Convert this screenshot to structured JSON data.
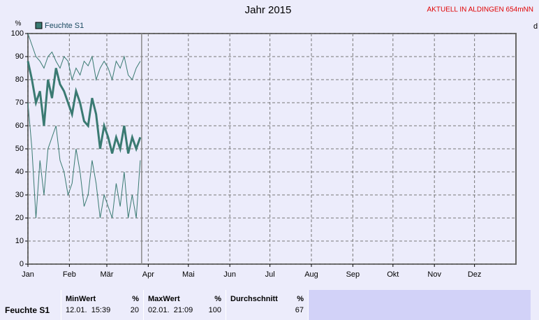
{
  "chart_data": {
    "type": "line",
    "title": "Jahr 2015",
    "subtitle": "AKTUELL IN ALDINGEN 654mNN",
    "y_label": "%",
    "x": [
      0,
      3,
      6,
      9,
      12,
      15,
      18,
      21,
      24,
      27,
      30,
      33,
      36,
      39,
      42,
      45,
      48,
      51,
      54,
      57,
      60,
      63,
      66,
      69,
      72,
      75,
      78,
      81,
      84
    ],
    "xlim": [
      0,
      365
    ],
    "xticks": [
      {
        "value": 0,
        "label": "Jan"
      },
      {
        "value": 31,
        "label": "Feb"
      },
      {
        "value": 59,
        "label": "Mär"
      },
      {
        "value": 90,
        "label": "Apr"
      },
      {
        "value": 120,
        "label": "Mai"
      },
      {
        "value": 151,
        "label": "Jun"
      },
      {
        "value": 181,
        "label": "Jul"
      },
      {
        "value": 212,
        "label": "Aug"
      },
      {
        "value": 243,
        "label": "Sep"
      },
      {
        "value": 273,
        "label": "Okt"
      },
      {
        "value": 304,
        "label": "Nov"
      },
      {
        "value": 334,
        "label": "Dez"
      }
    ],
    "ylim": [
      0,
      100
    ],
    "yticks": [
      0,
      10,
      20,
      30,
      40,
      50,
      60,
      70,
      80,
      90,
      100
    ],
    "grid": true,
    "series": [
      {
        "name": "Feuchte S1",
        "color": "#3a7a72",
        "values": [
          88,
          80,
          70,
          75,
          60,
          80,
          72,
          85,
          78,
          75,
          70,
          65,
          75,
          70,
          62,
          60,
          72,
          65,
          50,
          60,
          55,
          48,
          55,
          50,
          60,
          48,
          55,
          50,
          55
        ],
        "min_values": [
          70,
          50,
          20,
          45,
          30,
          50,
          55,
          60,
          45,
          40,
          30,
          35,
          50,
          40,
          25,
          30,
          45,
          35,
          20,
          30,
          25,
          20,
          35,
          25,
          40,
          20,
          30,
          20,
          45
        ],
        "max_values": [
          100,
          95,
          90,
          88,
          85,
          90,
          92,
          88,
          85,
          90,
          88,
          80,
          85,
          82,
          88,
          86,
          90,
          80,
          85,
          88,
          85,
          80,
          88,
          85,
          90,
          82,
          80,
          85,
          88
        ]
      }
    ]
  },
  "side_label": "d",
  "table": {
    "headers": [
      [
        "MinWert",
        "%"
      ],
      [
        "MaxWert",
        "%"
      ],
      [
        "Durchschnitt",
        "%"
      ]
    ],
    "row_label": "Feuchte S1",
    "cells": [
      [
        "12.01.  15:39",
        20
      ],
      [
        "02.01.  21:09",
        100
      ],
      [
        "",
        67
      ]
    ]
  }
}
